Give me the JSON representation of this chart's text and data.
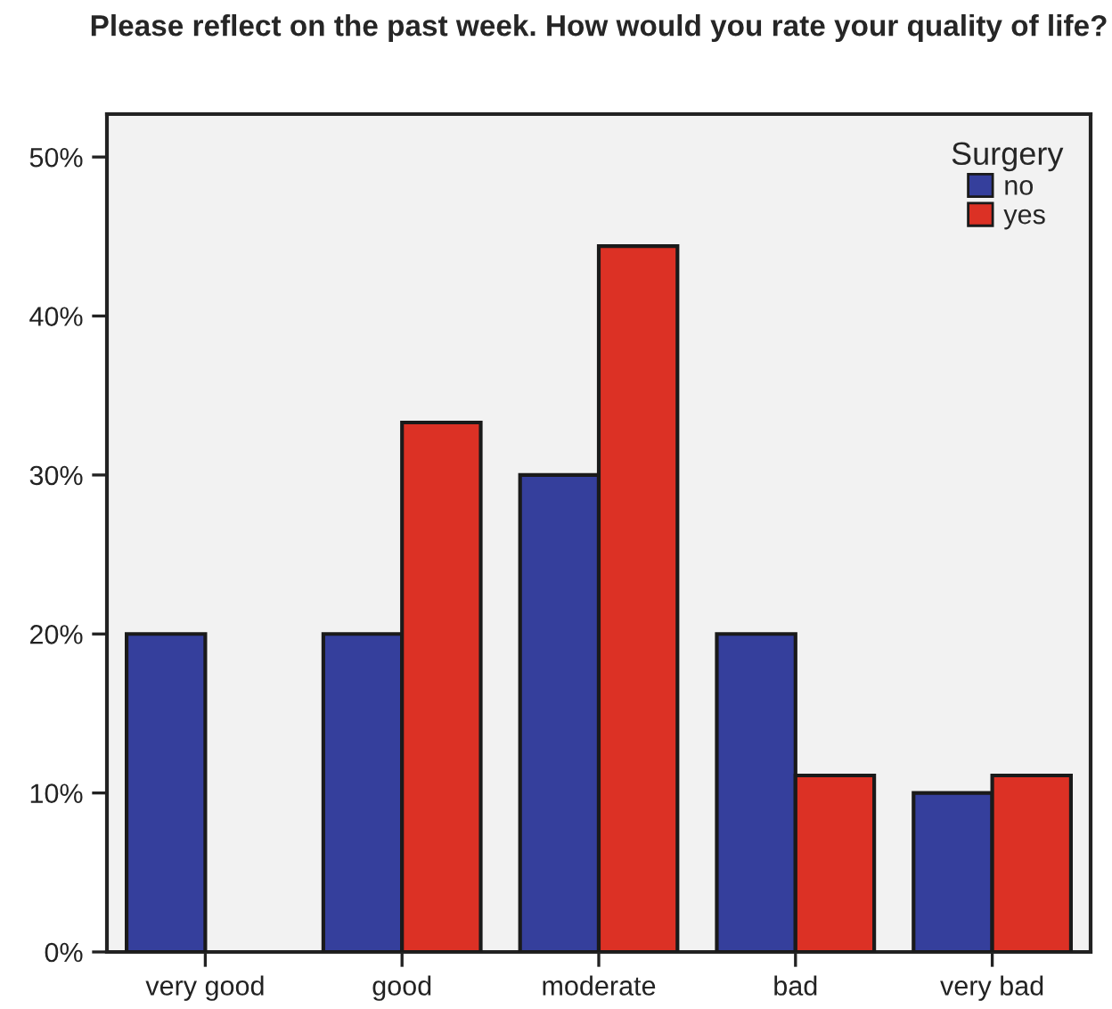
{
  "chart_data": {
    "type": "bar",
    "title": "Please reflect on the past week. How would you rate your quality of life?",
    "categories": [
      "very good",
      "good",
      "moderate",
      "bad",
      "very bad"
    ],
    "series": [
      {
        "name": "no",
        "color": "#353f9c",
        "values": [
          20,
          20,
          30,
          20,
          10
        ]
      },
      {
        "name": "yes",
        "color": "#dc3125",
        "values": [
          null,
          33.3,
          44.4,
          11.1,
          11.1
        ]
      }
    ],
    "legend_title": "Surgery",
    "legend": "top right",
    "grid": false,
    "ylim": [
      0,
      52.7
    ],
    "yticks": [
      {
        "value": 0,
        "label": "0%"
      },
      {
        "value": 10,
        "label": "10%"
      },
      {
        "value": 20,
        "label": "20%"
      },
      {
        "value": 30,
        "label": "30%"
      },
      {
        "value": 40,
        "label": "40%"
      },
      {
        "value": 50,
        "label": "50%"
      }
    ]
  }
}
